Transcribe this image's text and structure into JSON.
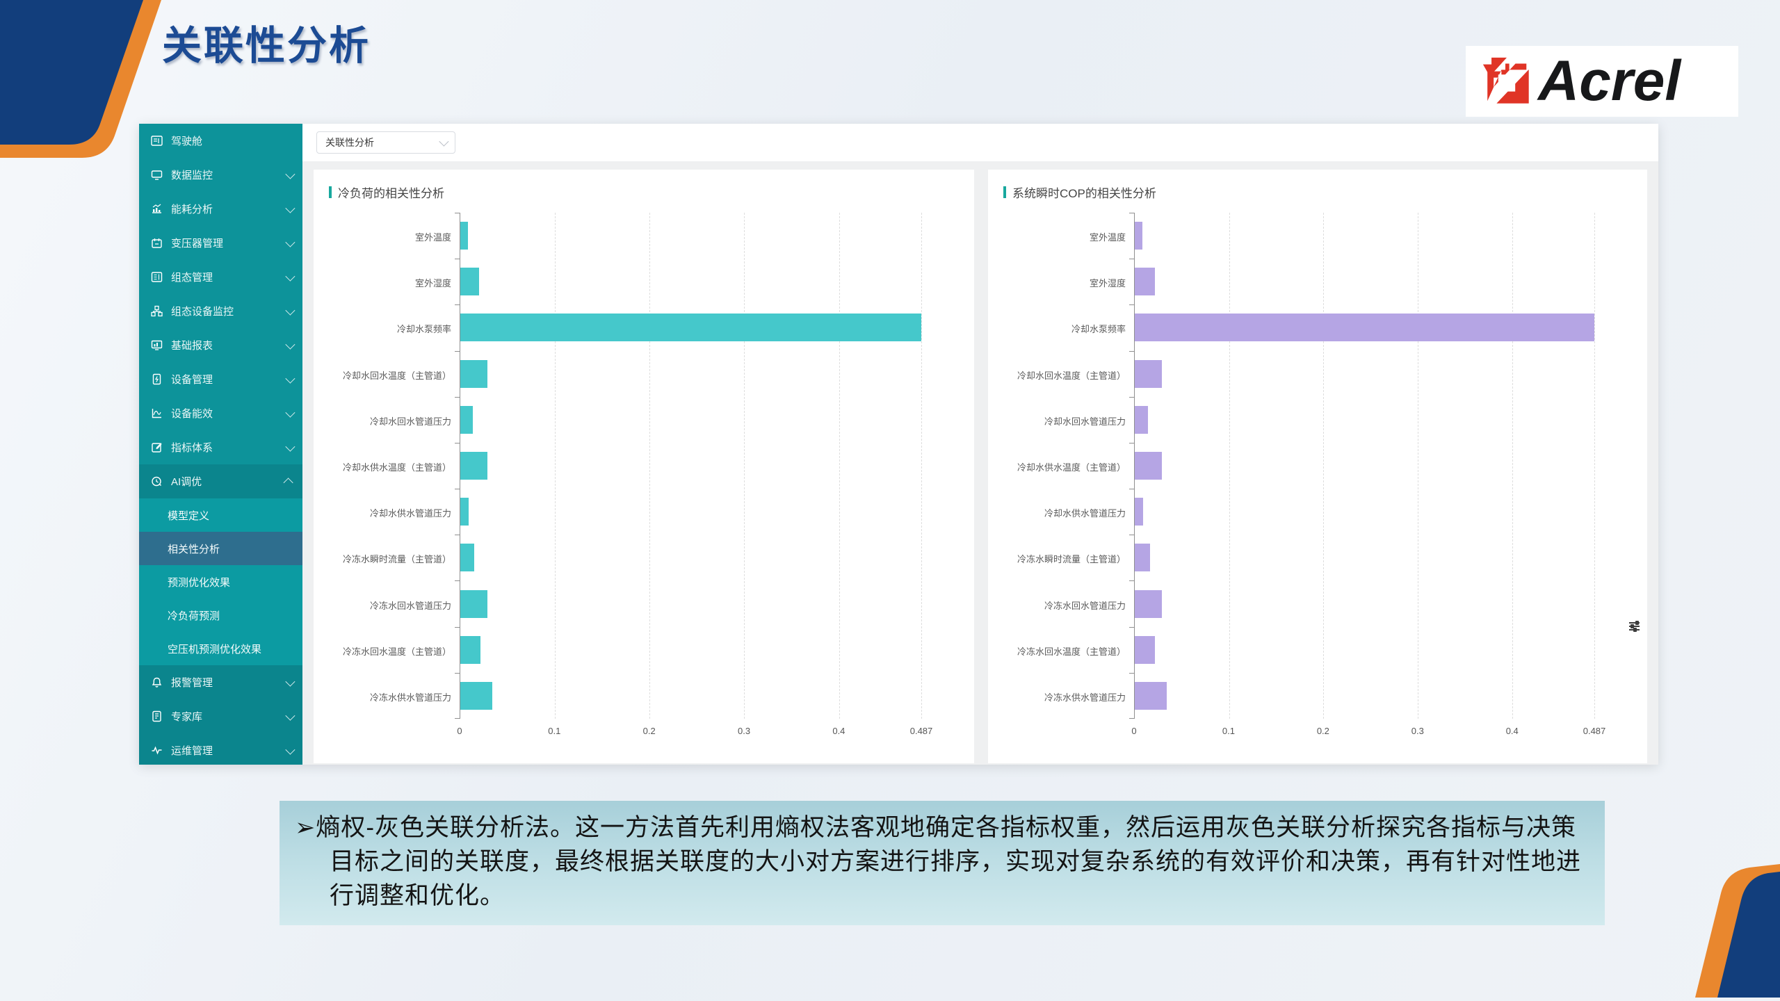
{
  "slide": {
    "title": "关联性分析",
    "logo_text": "Acrel",
    "note_bullet": "➢",
    "paragraph": "熵权-灰色关联分析法。这一方法首先利用熵权法客观地确定各指标权重，然后运用灰色关联分析探究各指标与决策目标之间的关联度，最终根据关联度的大小对方案进行排序，实现对复杂系统的有效评价和决策，再有针对性地进行调整和优化。"
  },
  "colors": {
    "title_blue": "#1c4b94",
    "corner_navy": "#123e7c",
    "corner_orange": "#e9872e",
    "sidebar_teal": "#0d939a",
    "sidebar_dark": "#0b858d",
    "submenu_teal": "#0c9ba2",
    "submenu_selected": "#2e6e8e",
    "bar_teal": "#45c8cb",
    "bar_purple": "#b5a5e4",
    "card_title_tick": "#18a89e",
    "logo_red": "#e03426"
  },
  "app": {
    "topbar": {
      "dropdown_value": "关联性分析"
    },
    "sidebar": {
      "items": [
        {
          "label": "驾驶舱",
          "icon": "dashboard-icon",
          "chevron": null,
          "dark": false
        },
        {
          "label": "数据监控",
          "icon": "data-monitor-icon",
          "chevron": "down",
          "dark": false
        },
        {
          "label": "能耗分析",
          "icon": "energy-analysis-icon",
          "chevron": "down",
          "dark": false
        },
        {
          "label": "变压器管理",
          "icon": "transformer-icon",
          "chevron": "down",
          "dark": false
        },
        {
          "label": "组态管理",
          "icon": "config-management-icon",
          "chevron": "down",
          "dark": false
        },
        {
          "label": "组态设备监控",
          "icon": "device-topology-icon",
          "chevron": "down",
          "dark": false
        },
        {
          "label": "基础报表",
          "icon": "report-icon",
          "chevron": "down",
          "dark": false
        },
        {
          "label": "设备管理",
          "icon": "device-management-icon",
          "chevron": "down",
          "dark": false
        },
        {
          "label": "设备能效",
          "icon": "device-efficiency-icon",
          "chevron": "down",
          "dark": false
        },
        {
          "label": "指标体系",
          "icon": "indicator-system-icon",
          "chevron": "down",
          "dark": false
        },
        {
          "label": "AI调优",
          "icon": "ai-tuning-icon",
          "chevron": "up",
          "dark": true,
          "children": [
            {
              "label": "模型定义",
              "selected": false
            },
            {
              "label": "相关性分析",
              "selected": true
            },
            {
              "label": "预测优化效果",
              "selected": false
            },
            {
              "label": "冷负荷预测",
              "selected": false
            },
            {
              "label": "空压机预测优化效果",
              "selected": false
            }
          ]
        },
        {
          "label": "报警管理",
          "icon": "alarm-icon",
          "chevron": "down",
          "dark": true
        },
        {
          "label": "专家库",
          "icon": "expert-library-icon",
          "chevron": "down",
          "dark": true
        },
        {
          "label": "运维管理",
          "icon": "ops-management-icon",
          "chevron": "down",
          "dark": true
        }
      ]
    }
  },
  "chart_data": [
    {
      "type": "bar",
      "orientation": "horizontal",
      "title": "冷负荷的相关性分析",
      "bar_color": "#45c8cb",
      "categories": [
        "室外温度",
        "室外湿度",
        "冷却水泵频率",
        "冷却水回水温度（主管道）",
        "冷却水回水管道压力",
        "冷却水供水温度（主管道）",
        "冷却水供水管道压力",
        "冷冻水瞬时流量（主管道）",
        "冷冻水回水管道压力",
        "冷冻水回水温度（主管道）",
        "冷冻水供水管道压力"
      ],
      "values": [
        0.008,
        0.02,
        0.487,
        0.029,
        0.013,
        0.029,
        0.009,
        0.015,
        0.029,
        0.021,
        0.034
      ],
      "xlim": [
        0,
        0.487
      ],
      "x_ticks": [
        0,
        0.1,
        0.2,
        0.3,
        0.4,
        0.487
      ],
      "x_tick_labels": [
        "0",
        "0.1",
        "0.2",
        "0.3",
        "0.4",
        "0.487"
      ],
      "grid": "dashed",
      "legend": "none"
    },
    {
      "type": "bar",
      "orientation": "horizontal",
      "title": "系统瞬时COP的相关性分析",
      "bar_color": "#b5a5e4",
      "categories": [
        "室外温度",
        "室外湿度",
        "冷却水泵频率",
        "冷却水回水温度（主管道）",
        "冷却水回水管道压力",
        "冷却水供水温度（主管道）",
        "冷却水供水管道压力",
        "冷冻水瞬时流量（主管道）",
        "冷冻水回水管道压力",
        "冷冻水回水温度（主管道）",
        "冷冻水供水管道压力"
      ],
      "values": [
        0.008,
        0.021,
        0.487,
        0.029,
        0.014,
        0.029,
        0.009,
        0.016,
        0.029,
        0.021,
        0.034
      ],
      "xlim": [
        0,
        0.487
      ],
      "x_ticks": [
        0,
        0.1,
        0.2,
        0.3,
        0.4,
        0.487
      ],
      "x_tick_labels": [
        "0",
        "0.1",
        "0.2",
        "0.3",
        "0.4",
        "0.487"
      ],
      "grid": "dashed",
      "legend": "none"
    }
  ]
}
